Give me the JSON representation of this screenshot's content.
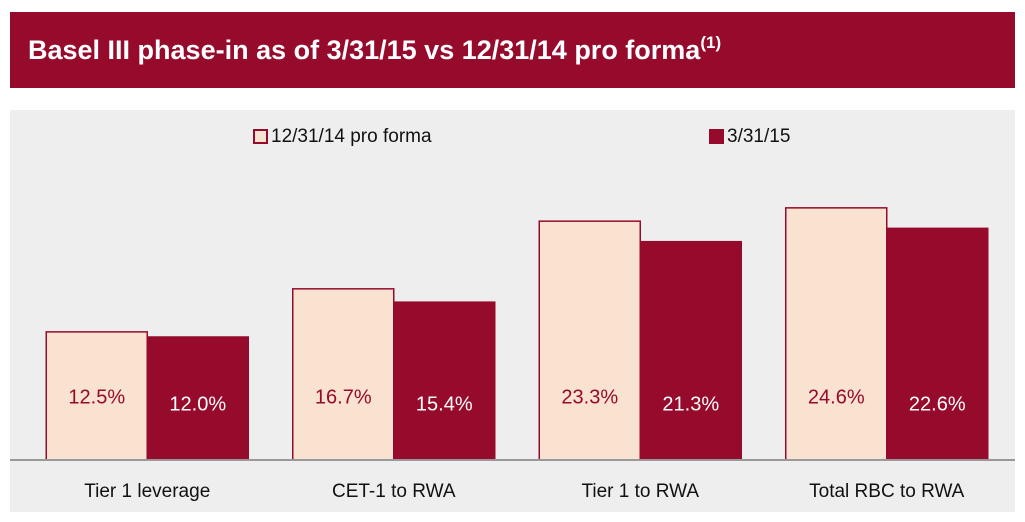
{
  "chart_data": {
    "type": "bar",
    "title": "Basel III phase-in as of 3/31/15 vs 12/31/14 pro forma",
    "title_note": "(1)",
    "categories": [
      "Tier 1 leverage",
      "CET-1 to RWA",
      "Tier 1 to RWA",
      "Total RBC to RWA"
    ],
    "series": [
      {
        "name": "12/31/14 pro forma",
        "color": "#f9e2cf",
        "values": [
          12.5,
          16.7,
          23.3,
          24.6
        ],
        "value_labels": [
          "12.5%",
          "16.7%",
          "23.3%",
          "24.6%"
        ]
      },
      {
        "name": "3/31/15",
        "color": "#960a2c",
        "values": [
          12.0,
          15.4,
          21.3,
          22.6
        ],
        "value_labels": [
          "12.0%",
          "15.4%",
          "21.3%",
          "22.6%"
        ]
      }
    ],
    "legend": "top"
  }
}
